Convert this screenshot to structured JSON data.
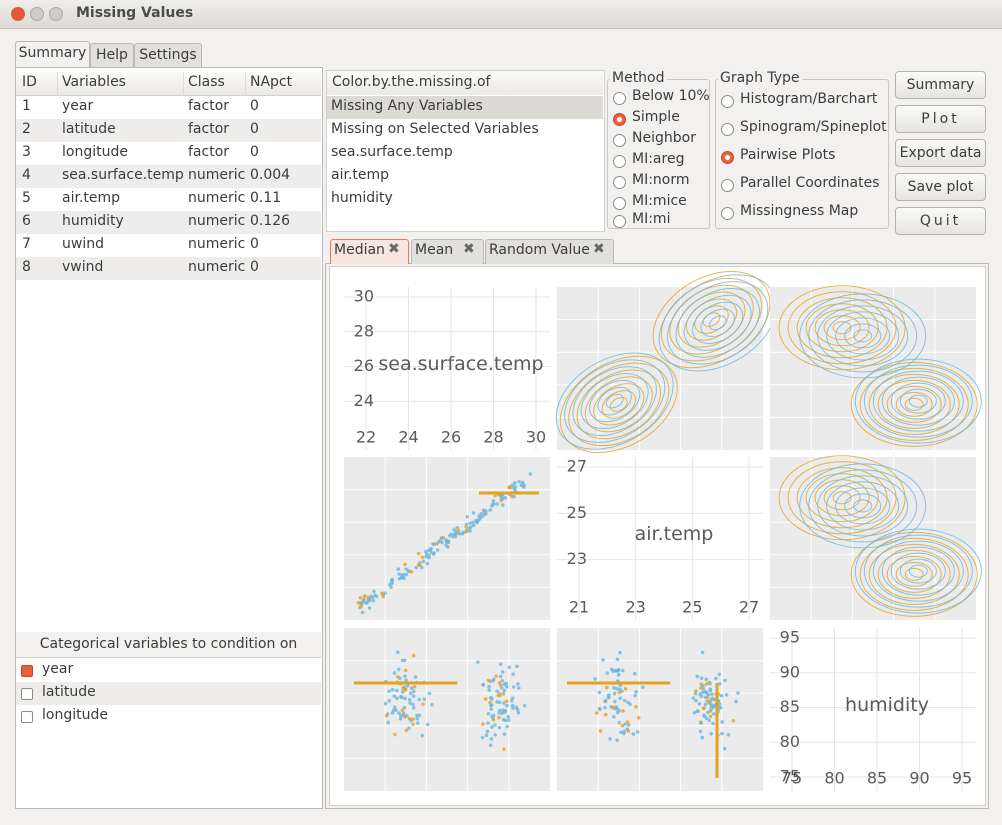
{
  "window": {
    "title": "Missing Values"
  },
  "tabs": [
    "Summary",
    "Help",
    "Settings"
  ],
  "variables_table": {
    "columns": [
      "ID",
      "Variables",
      "Class",
      "NApct"
    ],
    "rows": [
      [
        1,
        "year",
        "factor",
        0
      ],
      [
        2,
        "latitude",
        "factor",
        0
      ],
      [
        3,
        "longitude",
        "factor",
        0
      ],
      [
        4,
        "sea.surface.temp",
        "numeric",
        0.004
      ],
      [
        5,
        "air.temp",
        "numeric",
        0.11
      ],
      [
        6,
        "humidity",
        "numeric",
        0.126
      ],
      [
        7,
        "uwind",
        "numeric",
        0
      ],
      [
        8,
        "vwind",
        "numeric",
        0
      ]
    ]
  },
  "condition": {
    "title": "Categorical variables to condition on",
    "items": [
      {
        "label": "year",
        "checked": true
      },
      {
        "label": "latitude",
        "checked": false
      },
      {
        "label": "longitude",
        "checked": false
      }
    ]
  },
  "color_by": {
    "header": "Color.by.the.missing.of",
    "items": [
      "Missing Any Variables",
      "Missing on Selected Variables",
      "sea.surface.temp",
      "air.temp",
      "humidity"
    ],
    "selected": 0
  },
  "method": {
    "title": "Method",
    "options": [
      "Below 10%",
      "Simple",
      "Neighbor",
      "MI:areg",
      "MI:norm",
      "MI:mice",
      "MI:mi"
    ],
    "selected": 1
  },
  "graph_type": {
    "title": "Graph Type",
    "options": [
      "Histogram/Barchart",
      "Spinogram/Spineplot",
      "Pairwise Plots",
      "Parallel Coordinates",
      "Missingness Map"
    ],
    "selected": 2
  },
  "buttons": [
    "Summary",
    "Plot",
    "Export data",
    "Save plot",
    "Quit"
  ],
  "plot_tabs": [
    "Median",
    "Mean",
    "Random Value"
  ],
  "pairs": {
    "diagonal": [
      {
        "variable": "sea.surface.temp",
        "xticks": [
          22,
          24,
          26,
          28,
          30
        ],
        "yticks": [
          24,
          26,
          28,
          30
        ]
      },
      {
        "variable": "air.temp",
        "xticks": [
          21,
          23,
          25,
          27
        ],
        "yticks": [
          23,
          25,
          27
        ]
      },
      {
        "variable": "humidity",
        "xticks": [
          75,
          80,
          85,
          90,
          95
        ],
        "yticks": [
          75,
          80,
          85,
          90,
          95
        ]
      }
    ]
  }
}
